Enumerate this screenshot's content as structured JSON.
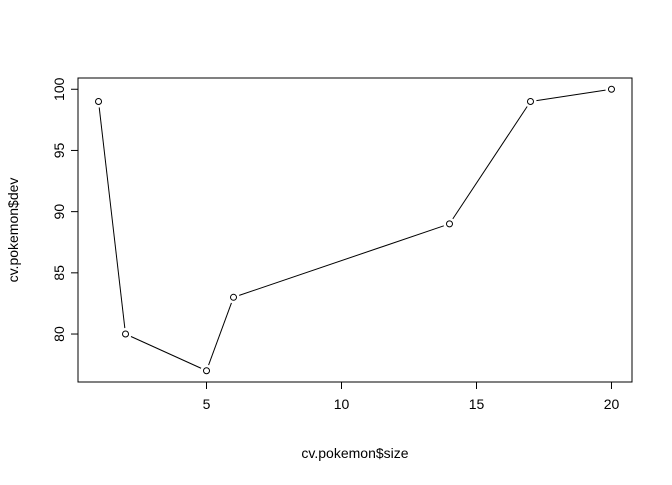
{
  "chart_data": {
    "type": "line",
    "title": "",
    "xlabel": "cv.pokemon$size",
    "ylabel": "cv.pokemon$dev",
    "x": [
      1,
      2,
      5,
      6,
      14,
      17,
      20
    ],
    "y": [
      99,
      80,
      77,
      83,
      89,
      99,
      100
    ],
    "xlim": [
      0.24,
      20.76
    ],
    "ylim": [
      76.08,
      100.92
    ],
    "xticks": [
      5,
      10,
      15,
      20
    ],
    "yticks": [
      80,
      85,
      90,
      95,
      100
    ],
    "xtick_labels": [
      "5",
      "10",
      "15",
      "20"
    ],
    "ytick_labels": [
      "80",
      "85",
      "90",
      "95",
      "100"
    ],
    "grid": false,
    "legend": "none",
    "marker": "open-circle",
    "line_color": "#000000",
    "marker_fill": "#ffffff",
    "marker_stroke": "#000000"
  }
}
